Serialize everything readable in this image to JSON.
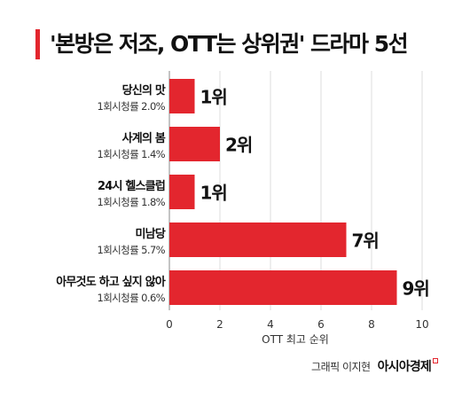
{
  "title": "'본방은 저조, OTT는 상위권' 드라마 5선",
  "accent_color": "#e3262e",
  "credit": {
    "text": "그래픽 이지현",
    "brand": "아시아경제"
  },
  "chart_data": {
    "type": "bar",
    "orientation": "horizontal",
    "title": "'본방은 저조, OTT는 상위권' 드라마 5선",
    "xlabel": "OTT 최고 순위",
    "xlim": [
      0,
      10
    ],
    "xticks": [
      "0",
      "2",
      "4",
      "6",
      "8",
      "10"
    ],
    "grid": true,
    "categories": [
      "당신의 맛",
      "사계의 봄",
      "24시 헬스클럽",
      "미남당",
      "아무것도 하고 싶지 않아"
    ],
    "subtitles": [
      "1회시청률 2.0%",
      "1회시청률 1.4%",
      "1회시청률 1.8%",
      "1회시청률 5.7%",
      "1회시청률 0.6%"
    ],
    "values": [
      1,
      2,
      1,
      7,
      9
    ],
    "data_labels": [
      "1위",
      "2위",
      "1위",
      "7위",
      "9위"
    ],
    "bar_color": "#e3262e"
  }
}
